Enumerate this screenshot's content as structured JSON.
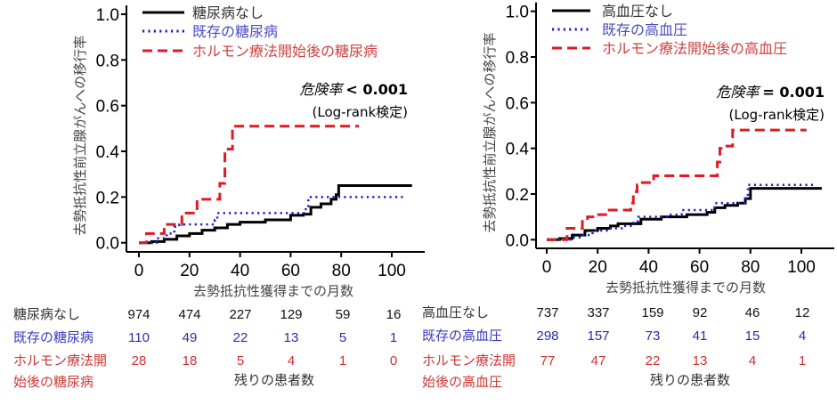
{
  "colors": {
    "none": "#000000",
    "existing": "#1f1fbf",
    "after_hormone": "#e01b24",
    "table_existing": "#2b2bb0",
    "table_after": "#d03030"
  },
  "chart_data": [
    {
      "type": "line",
      "step": true,
      "ylabel": "去勢抵抗性前立腺がんへの移行率",
      "xlabel": "去勢抵抗性獲得までの月数",
      "xlim": [
        0,
        108
      ],
      "ylim": [
        0,
        1.0
      ],
      "xticks": [
        "0",
        "20",
        "40",
        "60",
        "80",
        "100"
      ],
      "yticks": [
        "0.0",
        "0.2",
        "0.4",
        "0.6",
        "0.8",
        "1.0"
      ],
      "grid": false,
      "legend_position": "top-left",
      "stat_label": "危険率",
      "stat_value": "< 0.001",
      "stat_test": "(Log-rank検定)",
      "series": [
        {
          "name": "糖尿病なし",
          "style": "solid",
          "points": [
            [
              0,
              0
            ],
            [
              5,
              0.005
            ],
            [
              10,
              0.015
            ],
            [
              15,
              0.03
            ],
            [
              20,
              0.04
            ],
            [
              25,
              0.055
            ],
            [
              30,
              0.065
            ],
            [
              35,
              0.08
            ],
            [
              40,
              0.09
            ],
            [
              50,
              0.1
            ],
            [
              60,
              0.12
            ],
            [
              65,
              0.125
            ],
            [
              68,
              0.155
            ],
            [
              72,
              0.17
            ],
            [
              76,
              0.19
            ],
            [
              78,
              0.21
            ],
            [
              79,
              0.25
            ],
            [
              108,
              0.25
            ]
          ]
        },
        {
          "name": "既存の糖尿病",
          "style": "dotted",
          "points": [
            [
              0,
              0
            ],
            [
              7,
              0.02
            ],
            [
              11,
              0.04
            ],
            [
              14,
              0.07
            ],
            [
              16,
              0.08
            ],
            [
              30,
              0.1
            ],
            [
              31,
              0.13
            ],
            [
              66,
              0.16
            ],
            [
              67,
              0.2
            ],
            [
              105,
              0.2
            ]
          ]
        },
        {
          "name": "ホルモン療法開始後の糖尿病",
          "style": "dashed",
          "points": [
            [
              0,
              0
            ],
            [
              3,
              0.04
            ],
            [
              10,
              0.08
            ],
            [
              17,
              0.13
            ],
            [
              23,
              0.19
            ],
            [
              32,
              0.26
            ],
            [
              34,
              0.41
            ],
            [
              37,
              0.51
            ],
            [
              87,
              0.51
            ]
          ]
        }
      ],
      "risk_table": {
        "title": "残りの患者数",
        "rows": [
          {
            "label": [
              "糖尿病なし"
            ],
            "values": [
              "974",
              "474",
              "227",
              "129",
              "59",
              "16"
            ]
          },
          {
            "label": [
              "既存の糖尿病"
            ],
            "values": [
              "110",
              "49",
              "22",
              "13",
              "5",
              "1"
            ]
          },
          {
            "label": [
              "ホルモン療法開",
              "始後の糖尿病"
            ],
            "values": [
              "28",
              "18",
              "5",
              "4",
              "1",
              "0"
            ]
          }
        ]
      }
    },
    {
      "type": "line",
      "step": true,
      "ylabel": "去勢抵抗性前立腺がんへの移行率",
      "xlabel": "去勢抵抗性獲得までの月数",
      "xlim": [
        0,
        108
      ],
      "ylim": [
        0,
        1.0
      ],
      "xticks": [
        "0",
        "20",
        "40",
        "60",
        "80",
        "100"
      ],
      "yticks": [
        "0.0",
        "0.2",
        "0.4",
        "0.6",
        "0.8",
        "1.0"
      ],
      "grid": false,
      "legend_position": "top-left",
      "stat_label": "危険率",
      "stat_value": "= 0.001",
      "stat_test": "(Log-rank検定)",
      "series": [
        {
          "name": "高血圧なし",
          "style": "solid",
          "points": [
            [
              0,
              0
            ],
            [
              5,
              0.005
            ],
            [
              10,
              0.02
            ],
            [
              15,
              0.04
            ],
            [
              20,
              0.05
            ],
            [
              25,
              0.06
            ],
            [
              28,
              0.07
            ],
            [
              36,
              0.07
            ],
            [
              37,
              0.09
            ],
            [
              45,
              0.1
            ],
            [
              55,
              0.11
            ],
            [
              63,
              0.12
            ],
            [
              66,
              0.14
            ],
            [
              70,
              0.15
            ],
            [
              75,
              0.16
            ],
            [
              78,
              0.18
            ],
            [
              80,
              0.225
            ],
            [
              108,
              0.225
            ]
          ]
        },
        {
          "name": "既存の高血圧",
          "style": "dotted",
          "points": [
            [
              0,
              0
            ],
            [
              10,
              0.01
            ],
            [
              14,
              0.02
            ],
            [
              18,
              0.04
            ],
            [
              25,
              0.05
            ],
            [
              30,
              0.06
            ],
            [
              34,
              0.08
            ],
            [
              36,
              0.1
            ],
            [
              48,
              0.11
            ],
            [
              53,
              0.13
            ],
            [
              66,
              0.16
            ],
            [
              78,
              0.18
            ],
            [
              79,
              0.24
            ],
            [
              105,
              0.24
            ]
          ]
        },
        {
          "name": "ホルモン療法開始後の高血圧",
          "style": "dashed",
          "points": [
            [
              0,
              0
            ],
            [
              8,
              0.05
            ],
            [
              14,
              0.08
            ],
            [
              16,
              0.1
            ],
            [
              19,
              0.11
            ],
            [
              24,
              0.13
            ],
            [
              33,
              0.16
            ],
            [
              34,
              0.21
            ],
            [
              35.5,
              0.24
            ],
            [
              37,
              0.25
            ],
            [
              42,
              0.28
            ],
            [
              67,
              0.34
            ],
            [
              68,
              0.4
            ],
            [
              70,
              0.41
            ],
            [
              73,
              0.48
            ],
            [
              102,
              0.48
            ]
          ]
        }
      ],
      "risk_table": {
        "title": "残りの患者数",
        "rows": [
          {
            "label": [
              "高血圧なし"
            ],
            "values": [
              "737",
              "337",
              "159",
              "92",
              "46",
              "12"
            ]
          },
          {
            "label": [
              "既存の高血圧"
            ],
            "values": [
              "298",
              "157",
              "73",
              "41",
              "15",
              "4"
            ]
          },
          {
            "label": [
              "ホルモン療法開",
              "始後の高血圧"
            ],
            "values": [
              "77",
              "47",
              "22",
              "13",
              "4",
              "1"
            ]
          }
        ]
      }
    }
  ]
}
